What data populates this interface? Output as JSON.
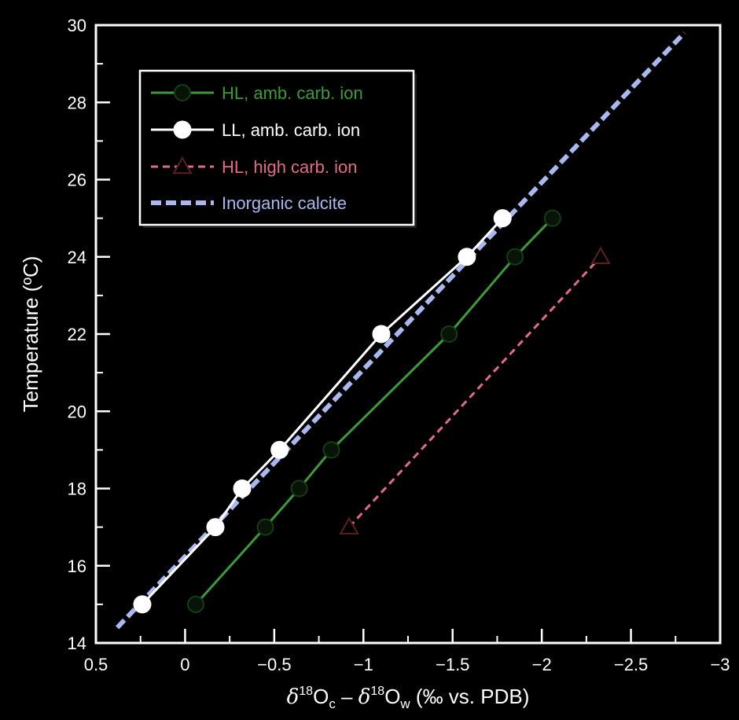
{
  "chart_data": {
    "type": "line",
    "x_axis": {
      "label_delta": "δ",
      "label_sup1": "18",
      "label_o1": "O",
      "label_sub1": "c",
      "label_minus": " – ",
      "label_sup2": "18",
      "label_o2": "O",
      "label_sub2": "w",
      "label_units": " (‰ vs. PDB)",
      "range": [
        0.5,
        -3
      ],
      "reversed": true,
      "ticks": [
        0.5,
        0,
        -0.5,
        -1,
        -1.5,
        -2,
        -2.5,
        -3
      ],
      "tick_labels": [
        "0.5",
        "0",
        "−0.5",
        "−1",
        "−1.5",
        "−2",
        "−2.5",
        "−3"
      ]
    },
    "y_axis": {
      "label": "Temperature (ºC)",
      "range": [
        14,
        30
      ],
      "ticks": [
        14,
        16,
        18,
        20,
        22,
        24,
        26,
        28,
        30
      ],
      "tick_labels": [
        "14",
        "16",
        "18",
        "20",
        "22",
        "24",
        "26",
        "28",
        "30"
      ]
    },
    "legend_position": "top-left",
    "series": [
      {
        "name": "HL, amb. carb. ion",
        "color": "#3d9a3b",
        "marker": "circle-open",
        "line": "solid",
        "points": [
          [
            -0.06,
            15
          ],
          [
            -0.45,
            17
          ],
          [
            -0.64,
            18
          ],
          [
            -0.82,
            19
          ],
          [
            -1.48,
            22
          ],
          [
            -1.85,
            24
          ],
          [
            -2.06,
            25
          ]
        ]
      },
      {
        "name": "LL, amb. carb. ion",
        "color": "#ffffff",
        "marker": "circle-filled",
        "line": "solid",
        "points": [
          [
            0.24,
            15
          ],
          [
            -0.17,
            17
          ],
          [
            -0.32,
            18
          ],
          [
            -0.53,
            19
          ],
          [
            -1.1,
            22
          ],
          [
            -1.58,
            24
          ],
          [
            -1.78,
            25
          ]
        ]
      },
      {
        "name": "HL, high carb. ion",
        "color": "#e36a86",
        "marker": "triangle-open",
        "line": "dashed",
        "points": [
          [
            -0.92,
            17
          ],
          [
            -2.33,
            24
          ]
        ]
      },
      {
        "name": "Inorganic calcite",
        "color": "#a9b8f0",
        "marker": "none",
        "line": "dashed-thick",
        "points": [
          [
            0.38,
            14.4
          ],
          [
            -2.8,
            29.8
          ]
        ]
      }
    ]
  }
}
